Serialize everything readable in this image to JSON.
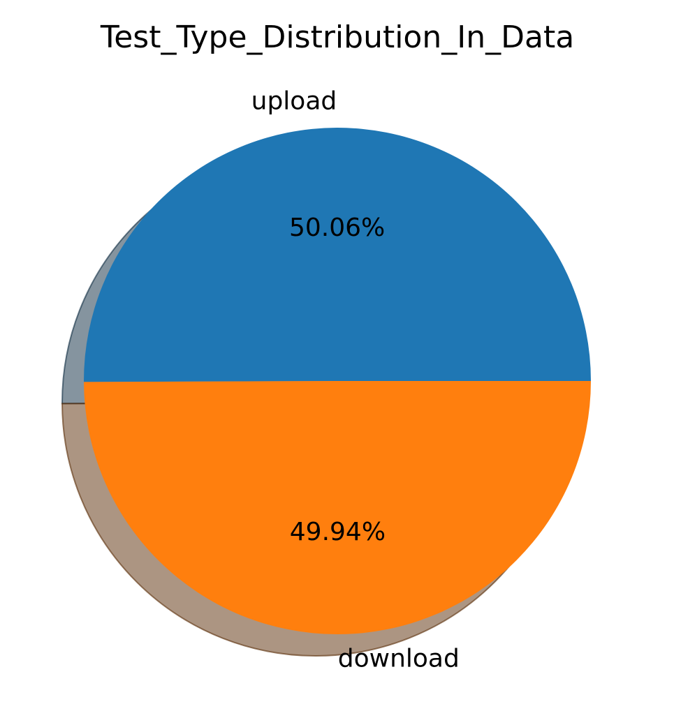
{
  "chart_data": {
    "type": "pie",
    "title": "Test_Type_Distribution_In_Data",
    "slices": [
      {
        "label": "upload",
        "value": 50.06,
        "pct_label": "50.06%",
        "color": "#1f77b4"
      },
      {
        "label": "download",
        "value": 49.94,
        "pct_label": "49.94%",
        "color": "#ff7f0e"
      }
    ],
    "shadow": true,
    "legend": "none"
  }
}
